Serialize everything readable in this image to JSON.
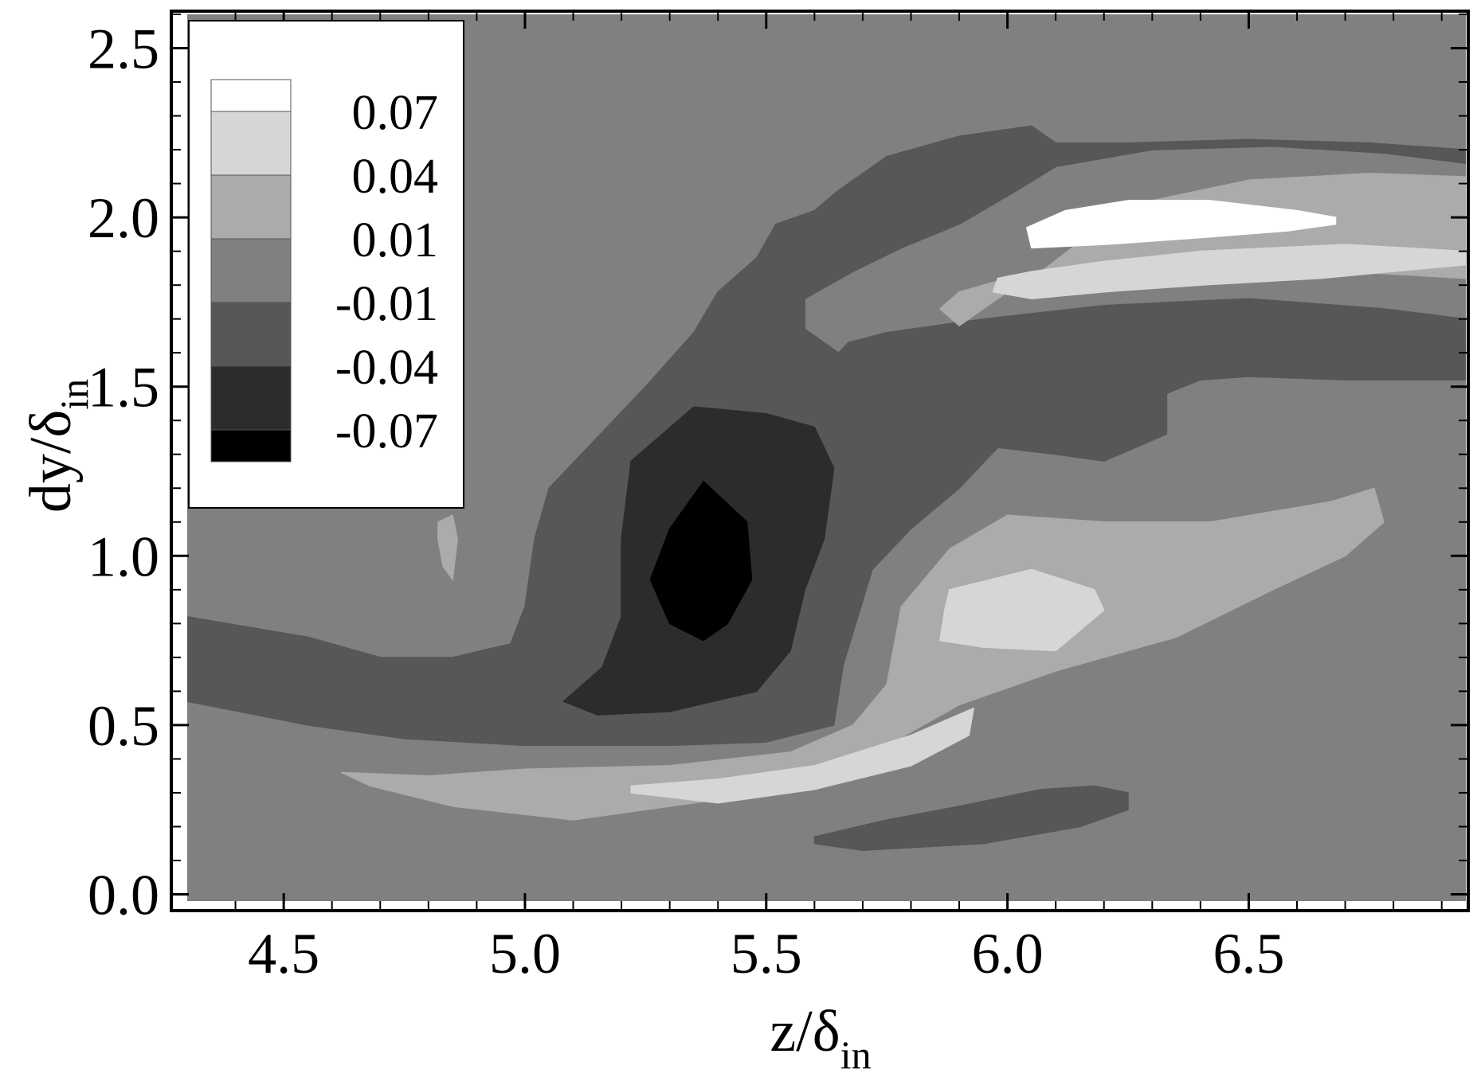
{
  "chart_data": {
    "type": "heatmap",
    "subtype": "filled-contour",
    "colormap": "grayscale",
    "xlabel_main": "z/δ",
    "xlabel_sub": "in",
    "ylabel_main": "dy/δ",
    "ylabel_sub": "in",
    "xlim": [
      4.3,
      6.95
    ],
    "ylim": [
      -0.02,
      2.6
    ],
    "x_ticks": [
      {
        "value": 4.5,
        "label": "4.5"
      },
      {
        "value": 5.0,
        "label": "5.0"
      },
      {
        "value": 5.5,
        "label": "5.5"
      },
      {
        "value": 6.0,
        "label": "6.0"
      },
      {
        "value": 6.5,
        "label": "6.5"
      }
    ],
    "y_ticks": [
      {
        "value": 0.0,
        "label": "0.0"
      },
      {
        "value": 0.5,
        "label": "0.5"
      },
      {
        "value": 1.0,
        "label": "1.0"
      },
      {
        "value": 1.5,
        "label": "1.5"
      },
      {
        "value": 2.0,
        "label": "2.0"
      },
      {
        "value": 2.5,
        "label": "2.5"
      }
    ],
    "legend": {
      "placement": "top-left",
      "levels": [
        {
          "label": "0.07",
          "color": "#ffffff"
        },
        {
          "label": "0.04",
          "color": "#d6d6d6"
        },
        {
          "label": "0.01",
          "color": "#ababab"
        },
        {
          "label": "-0.01",
          "color": "#808080"
        },
        {
          "label": "-0.04",
          "color": "#575757"
        },
        {
          "label": "-0.07",
          "color": "#2c2c2c"
        }
      ],
      "bottom_color": "#000000"
    },
    "background_color": "#808080",
    "regions": [
      {
        "id": "upper-band-dark",
        "color": "#575757",
        "points": [
          [
            6.95,
            1.52
          ],
          [
            6.95,
            1.7
          ],
          [
            6.78,
            1.73
          ],
          [
            6.5,
            1.76
          ],
          [
            6.2,
            1.74
          ],
          [
            5.95,
            1.7
          ],
          [
            5.75,
            1.66
          ],
          [
            5.67,
            1.63
          ],
          [
            5.65,
            1.6
          ],
          [
            5.58,
            1.67
          ],
          [
            5.58,
            1.76
          ],
          [
            5.68,
            1.84
          ],
          [
            5.78,
            1.91
          ],
          [
            5.9,
            1.98
          ],
          [
            6.02,
            2.08
          ],
          [
            6.1,
            2.15
          ],
          [
            6.3,
            2.2
          ],
          [
            6.55,
            2.21
          ],
          [
            6.78,
            2.19
          ],
          [
            6.95,
            2.16
          ],
          [
            6.95,
            2.2
          ],
          [
            6.75,
            2.22
          ],
          [
            6.5,
            2.23
          ],
          [
            6.25,
            2.22
          ],
          [
            6.1,
            2.22
          ],
          [
            6.05,
            2.27
          ],
          [
            5.9,
            2.24
          ],
          [
            5.75,
            2.18
          ],
          [
            5.65,
            2.08
          ],
          [
            5.6,
            2.02
          ],
          [
            5.52,
            1.98
          ],
          [
            5.48,
            1.88
          ],
          [
            5.4,
            1.78
          ],
          [
            5.35,
            1.66
          ],
          [
            5.25,
            1.5
          ],
          [
            5.15,
            1.35
          ],
          [
            5.05,
            1.2
          ],
          [
            5.02,
            1.05
          ],
          [
            5.0,
            0.85
          ],
          [
            4.97,
            0.74
          ],
          [
            4.85,
            0.7
          ],
          [
            4.7,
            0.7
          ],
          [
            4.55,
            0.76
          ],
          [
            4.3,
            0.82
          ],
          [
            4.3,
            0.57
          ],
          [
            4.55,
            0.5
          ],
          [
            4.75,
            0.46
          ],
          [
            5.0,
            0.44
          ],
          [
            5.3,
            0.44
          ],
          [
            5.5,
            0.45
          ],
          [
            5.64,
            0.5
          ],
          [
            5.66,
            0.68
          ],
          [
            5.72,
            0.96
          ],
          [
            5.8,
            1.08
          ],
          [
            5.9,
            1.2
          ],
          [
            5.98,
            1.32
          ],
          [
            6.1,
            1.3
          ],
          [
            6.2,
            1.28
          ],
          [
            6.33,
            1.36
          ],
          [
            6.33,
            1.48
          ],
          [
            6.4,
            1.52
          ],
          [
            6.5,
            1.53
          ],
          [
            6.7,
            1.52
          ],
          [
            6.95,
            1.52
          ]
        ]
      },
      {
        "id": "upper-band-mid",
        "color": "#808080",
        "points": [
          [
            6.95,
            1.73
          ],
          [
            6.75,
            1.74
          ],
          [
            6.5,
            1.78
          ],
          [
            6.2,
            1.79
          ],
          [
            5.95,
            1.77
          ],
          [
            5.8,
            1.72
          ],
          [
            5.72,
            1.7
          ],
          [
            5.68,
            1.68
          ],
          [
            5.7,
            1.73
          ],
          [
            5.8,
            1.8
          ],
          [
            5.9,
            1.9
          ],
          [
            6.0,
            2.0
          ],
          [
            6.1,
            2.1
          ],
          [
            6.3,
            2.18
          ],
          [
            6.55,
            2.19
          ],
          [
            6.78,
            2.17
          ],
          [
            6.95,
            2.14
          ],
          [
            6.95,
            1.73
          ]
        ]
      },
      {
        "id": "upper-band-light",
        "color": "#ababab",
        "points": [
          [
            6.95,
            1.82
          ],
          [
            6.7,
            1.84
          ],
          [
            6.5,
            1.86
          ],
          [
            6.2,
            1.85
          ],
          [
            6.0,
            1.82
          ],
          [
            5.9,
            1.78
          ],
          [
            5.86,
            1.73
          ],
          [
            5.9,
            1.68
          ],
          [
            5.95,
            1.73
          ],
          [
            6.0,
            1.78
          ],
          [
            6.07,
            1.84
          ],
          [
            6.18,
            1.96
          ],
          [
            6.3,
            2.05
          ],
          [
            6.5,
            2.11
          ],
          [
            6.75,
            2.13
          ],
          [
            6.95,
            2.12
          ],
          [
            6.95,
            1.82
          ]
        ]
      },
      {
        "id": "upper-band-lighter",
        "color": "#d6d6d6",
        "points": [
          [
            6.95,
            1.9
          ],
          [
            6.7,
            1.92
          ],
          [
            6.4,
            1.9
          ],
          [
            6.2,
            1.87
          ],
          [
            6.05,
            1.84
          ],
          [
            5.98,
            1.82
          ],
          [
            5.97,
            1.78
          ],
          [
            6.05,
            1.76
          ],
          [
            6.2,
            1.78
          ],
          [
            6.4,
            1.8
          ],
          [
            6.65,
            1.82
          ],
          [
            6.95,
            1.86
          ],
          [
            6.95,
            1.9
          ]
        ]
      },
      {
        "id": "upper-band-white",
        "color": "#ffffff",
        "points": [
          [
            6.68,
            2.0
          ],
          [
            6.6,
            2.02
          ],
          [
            6.42,
            2.05
          ],
          [
            6.25,
            2.05
          ],
          [
            6.12,
            2.02
          ],
          [
            6.04,
            1.97
          ],
          [
            6.05,
            1.91
          ],
          [
            6.2,
            1.92
          ],
          [
            6.4,
            1.94
          ],
          [
            6.58,
            1.96
          ],
          [
            6.68,
            1.98
          ],
          [
            6.68,
            2.0
          ]
        ]
      },
      {
        "id": "core-dark",
        "color": "#2c2c2c",
        "points": [
          [
            5.22,
            1.28
          ],
          [
            5.35,
            1.44
          ],
          [
            5.5,
            1.42
          ],
          [
            5.6,
            1.38
          ],
          [
            5.64,
            1.26
          ],
          [
            5.62,
            1.05
          ],
          [
            5.58,
            0.9
          ],
          [
            5.55,
            0.72
          ],
          [
            5.48,
            0.6
          ],
          [
            5.3,
            0.54
          ],
          [
            5.15,
            0.53
          ],
          [
            5.08,
            0.57
          ],
          [
            5.16,
            0.67
          ],
          [
            5.2,
            0.82
          ],
          [
            5.2,
            1.05
          ],
          [
            5.22,
            1.28
          ]
        ]
      },
      {
        "id": "core-black",
        "color": "#000000",
        "points": [
          [
            5.37,
            1.22
          ],
          [
            5.46,
            1.1
          ],
          [
            5.47,
            0.93
          ],
          [
            5.42,
            0.8
          ],
          [
            5.37,
            0.75
          ],
          [
            5.3,
            0.8
          ],
          [
            5.26,
            0.93
          ],
          [
            5.3,
            1.08
          ],
          [
            5.37,
            1.22
          ]
        ]
      },
      {
        "id": "lower-band-light",
        "color": "#ababab",
        "points": [
          [
            4.62,
            0.36
          ],
          [
            4.8,
            0.35
          ],
          [
            5.0,
            0.37
          ],
          [
            5.3,
            0.38
          ],
          [
            5.55,
            0.42
          ],
          [
            5.68,
            0.5
          ],
          [
            5.75,
            0.62
          ],
          [
            5.78,
            0.85
          ],
          [
            5.88,
            1.02
          ],
          [
            6.0,
            1.12
          ],
          [
            6.2,
            1.1
          ],
          [
            6.42,
            1.1
          ],
          [
            6.67,
            1.16
          ],
          [
            6.76,
            1.2
          ],
          [
            6.78,
            1.1
          ],
          [
            6.7,
            1.0
          ],
          [
            6.55,
            0.9
          ],
          [
            6.35,
            0.76
          ],
          [
            6.1,
            0.66
          ],
          [
            5.9,
            0.56
          ],
          [
            5.75,
            0.44
          ],
          [
            5.6,
            0.34
          ],
          [
            5.4,
            0.28
          ],
          [
            5.1,
            0.22
          ],
          [
            4.85,
            0.26
          ],
          [
            4.68,
            0.32
          ],
          [
            4.62,
            0.36
          ]
        ]
      },
      {
        "id": "lower-band-lighter",
        "color": "#d6d6d6",
        "points": [
          [
            5.22,
            0.32
          ],
          [
            5.4,
            0.34
          ],
          [
            5.6,
            0.38
          ],
          [
            5.8,
            0.47
          ],
          [
            5.93,
            0.55
          ],
          [
            5.92,
            0.47
          ],
          [
            5.8,
            0.38
          ],
          [
            5.6,
            0.31
          ],
          [
            5.4,
            0.27
          ],
          [
            5.22,
            0.3
          ]
        ]
      },
      {
        "id": "mid-blob-lighter",
        "color": "#d6d6d6",
        "points": [
          [
            5.88,
            0.9
          ],
          [
            6.05,
            0.96
          ],
          [
            6.18,
            0.9
          ],
          [
            6.2,
            0.84
          ],
          [
            6.1,
            0.72
          ],
          [
            5.95,
            0.73
          ],
          [
            5.86,
            0.75
          ],
          [
            5.87,
            0.84
          ],
          [
            5.88,
            0.9
          ]
        ]
      },
      {
        "id": "lower-blob-dark",
        "color": "#575757",
        "points": [
          [
            5.6,
            0.17
          ],
          [
            5.75,
            0.22
          ],
          [
            5.9,
            0.26
          ],
          [
            6.07,
            0.31
          ],
          [
            6.18,
            0.32
          ],
          [
            6.25,
            0.3
          ],
          [
            6.25,
            0.25
          ],
          [
            6.15,
            0.2
          ],
          [
            5.95,
            0.15
          ],
          [
            5.7,
            0.13
          ],
          [
            5.6,
            0.15
          ],
          [
            5.6,
            0.17
          ]
        ]
      },
      {
        "id": "small-light-sliver",
        "color": "#ababab",
        "points": [
          [
            4.82,
            1.1
          ],
          [
            4.85,
            1.12
          ],
          [
            4.86,
            1.05
          ],
          [
            4.85,
            0.93
          ],
          [
            4.83,
            0.97
          ],
          [
            4.82,
            1.05
          ],
          [
            4.82,
            1.1
          ]
        ]
      }
    ]
  }
}
